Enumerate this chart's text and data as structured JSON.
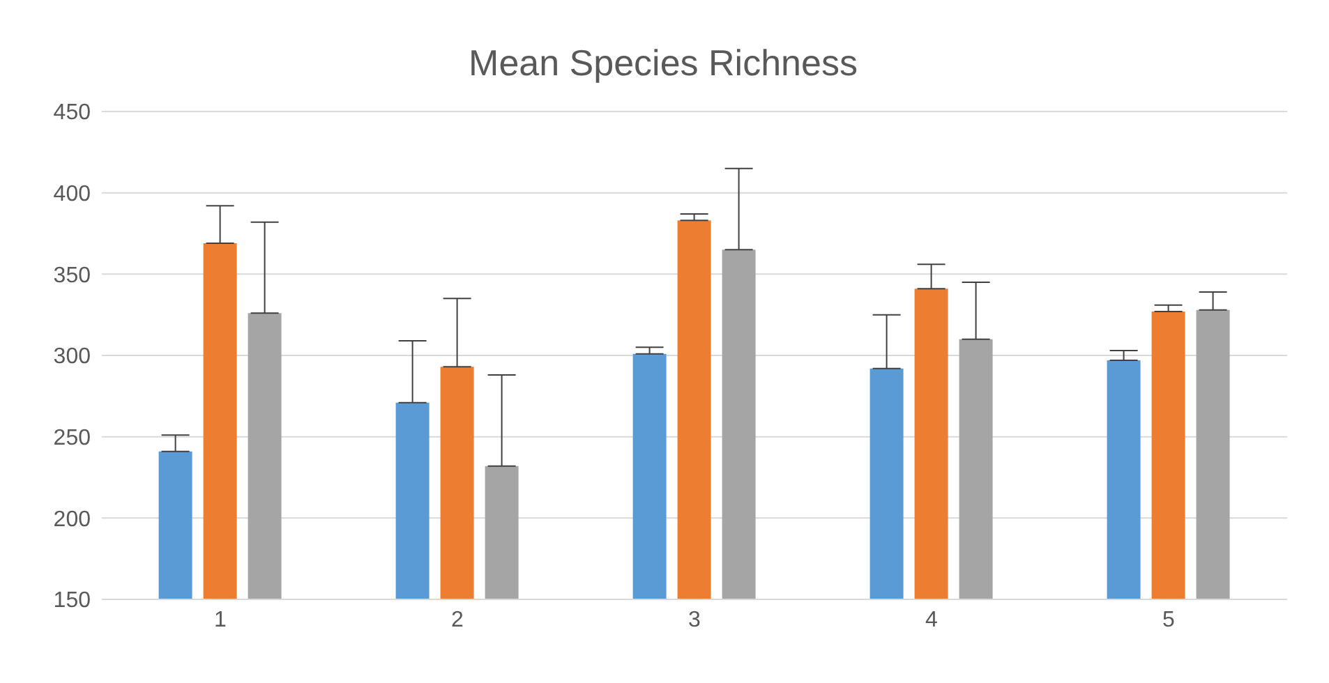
{
  "chart_data": {
    "type": "bar",
    "title": "Mean Species Richness",
    "categories": [
      "1",
      "2",
      "3",
      "4",
      "5"
    ],
    "series": [
      {
        "color": "#5b9bd5",
        "values": [
          241,
          271,
          301,
          292,
          297
        ],
        "errors": [
          [
            241,
            251
          ],
          [
            271,
            309
          ],
          [
            301,
            305
          ],
          [
            292,
            325
          ],
          [
            297,
            303
          ]
        ]
      },
      {
        "color": "#ed7d31",
        "values": [
          369,
          293,
          383,
          341,
          327
        ],
        "errors": [
          [
            369,
            392
          ],
          [
            293,
            335
          ],
          [
            383,
            387
          ],
          [
            341,
            356
          ],
          [
            327,
            331
          ]
        ]
      },
      {
        "color": "#a5a5a5",
        "values": [
          326,
          232,
          365,
          310,
          328
        ],
        "errors": [
          [
            326,
            382
          ],
          [
            232,
            288
          ],
          [
            365,
            415
          ],
          [
            310,
            345
          ],
          [
            328,
            339
          ]
        ]
      }
    ],
    "ylim": [
      150,
      450
    ],
    "yticks": [
      150,
      200,
      250,
      300,
      350,
      400,
      450
    ],
    "grid": "y"
  }
}
